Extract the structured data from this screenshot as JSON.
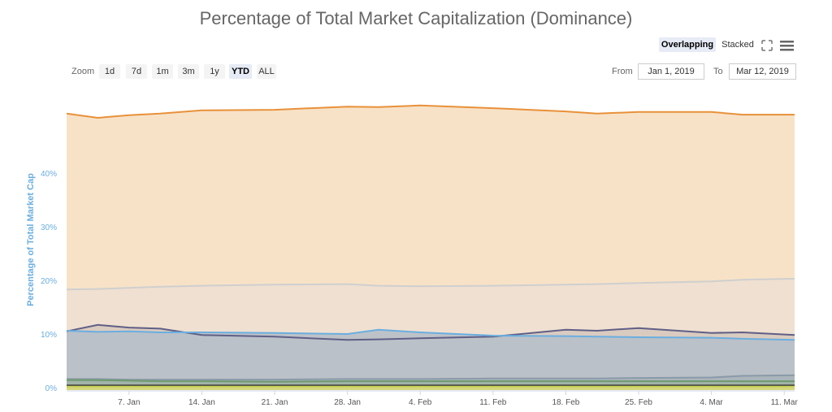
{
  "title": "Percentage of Total Market Capitalization (Dominance)",
  "toolbar": {
    "overlapping": "Overlapping",
    "stacked": "Stacked",
    "fullscreen_icon": "expand-icon",
    "menu_icon": "hamburger-icon",
    "zoom_label": "Zoom",
    "zoom_buttons": [
      "1d",
      "7d",
      "1m",
      "3m",
      "1y",
      "YTD",
      "ALL"
    ],
    "zoom_selected": "YTD",
    "from_label": "From",
    "from_value": "Jan 1, 2019",
    "to_label": "To",
    "to_value": "Mar 12, 2019"
  },
  "chart_data": {
    "type": "area",
    "ylabel": "Percentage of Total Market Cap",
    "ylim": [
      0,
      55
    ],
    "yticks": [
      "0%",
      "10%",
      "20%",
      "30%",
      "40%"
    ],
    "xticks": [
      "7. Jan",
      "14. Jan",
      "21. Jan",
      "28. Jan",
      "4. Feb",
      "11. Feb",
      "18. Feb",
      "25. Feb",
      "4. Mar",
      "11. Mar"
    ],
    "xrange": [
      "2019-01-01",
      "2019-03-12"
    ],
    "grid": true,
    "x": [
      "2019-01-01",
      "2019-01-04",
      "2019-01-07",
      "2019-01-10",
      "2019-01-14",
      "2019-01-21",
      "2019-01-28",
      "2019-01-31",
      "2019-02-04",
      "2019-02-11",
      "2019-02-18",
      "2019-02-21",
      "2019-02-25",
      "2019-03-04",
      "2019-03-07",
      "2019-03-12"
    ],
    "series": [
      {
        "color": "#e8913a",
        "fill": "#f8e0c4",
        "values": [
          51.1,
          50.3,
          50.8,
          51.1,
          51.7,
          51.8,
          52.4,
          52.3,
          52.6,
          52.1,
          51.5,
          51.1,
          51.4,
          51.4,
          50.9,
          50.9
        ]
      },
      {
        "color": "#cfcfcf",
        "fill": "#efdfd2",
        "values": [
          18.3,
          18.4,
          18.6,
          18.8,
          19.0,
          19.2,
          19.3,
          19.0,
          18.9,
          19.0,
          19.2,
          19.3,
          19.5,
          19.8,
          20.1,
          20.3
        ]
      },
      {
        "color": "#5f5f86",
        "fill": "#d8c9bf",
        "values": [
          10.5,
          11.7,
          11.2,
          11.0,
          9.8,
          9.5,
          8.9,
          9.0,
          9.2,
          9.5,
          10.8,
          10.6,
          11.1,
          10.2,
          10.3,
          9.8
        ]
      },
      {
        "color": "#6aaee0",
        "fill": "#b9c0c8",
        "values": [
          10.6,
          10.4,
          10.5,
          10.3,
          10.3,
          10.2,
          10.0,
          10.8,
          10.3,
          9.7,
          9.6,
          9.5,
          9.4,
          9.3,
          9.1,
          8.9
        ]
      },
      {
        "color": "#8a9aa8",
        "fill": "#aab4bc",
        "values": [
          1.6,
          1.6,
          1.5,
          1.5,
          1.5,
          1.5,
          1.6,
          1.6,
          1.6,
          1.7,
          1.7,
          1.7,
          1.8,
          1.9,
          2.2,
          2.3
        ]
      },
      {
        "color": "#6e9a6e",
        "fill": "#9fb3a8",
        "values": [
          1.4,
          1.4,
          1.3,
          1.2,
          1.2,
          1.1,
          1.2,
          1.2,
          1.2,
          1.2,
          1.2,
          1.2,
          1.2,
          1.2,
          1.2,
          1.2
        ]
      },
      {
        "color": "#333333",
        "fill": "#7d8a88",
        "values": [
          0.4,
          0.4,
          0.4,
          0.4,
          0.4,
          0.4,
          0.4,
          0.4,
          0.4,
          0.4,
          0.4,
          0.4,
          0.4,
          0.4,
          0.4,
          0.4
        ]
      },
      {
        "color": "#c9cf5a",
        "fill": "#d9db7a",
        "values": [
          0.2,
          0.2,
          0.2,
          0.2,
          0.2,
          0.2,
          0.2,
          0.2,
          0.2,
          0.2,
          0.2,
          0.2,
          0.2,
          0.2,
          0.2,
          0.2
        ]
      }
    ]
  }
}
